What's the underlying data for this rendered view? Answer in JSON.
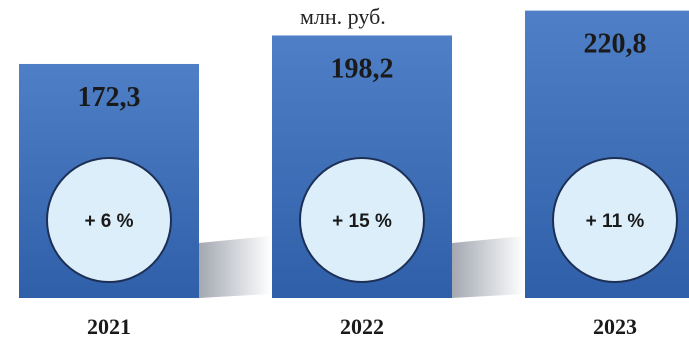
{
  "chart_data": {
    "type": "bar",
    "unit_label": "млн. руб.",
    "categories": [
      "2021",
      "2022",
      "2023"
    ],
    "series": [
      {
        "values": [
          172.3,
          198.2,
          220.8
        ],
        "value_labels": [
          "172,3",
          "198,2",
          "220,8"
        ],
        "change_labels": [
          "+ 6 %",
          "+ 15 %",
          "+ 11 %"
        ]
      }
    ],
    "title": "",
    "xlabel": "",
    "ylabel": "",
    "grid": false,
    "legend": "none",
    "colors": {
      "bar_top": "#4f7fc6",
      "bar_bottom": "#2f5fa8",
      "circle_fill": "#dceefa",
      "circle_stroke": "#1d2f55",
      "shadow": "#9ea3ad"
    }
  }
}
